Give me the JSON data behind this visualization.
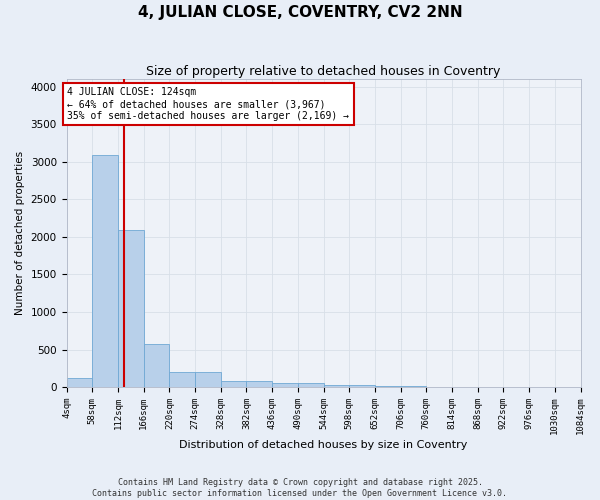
{
  "title": "4, JULIAN CLOSE, COVENTRY, CV2 2NN",
  "subtitle": "Size of property relative to detached houses in Coventry",
  "xlabel": "Distribution of detached houses by size in Coventry",
  "ylabel": "Number of detached properties",
  "bin_edges": [
    4,
    58,
    112,
    166,
    220,
    274,
    328,
    382,
    436,
    490,
    544,
    598,
    652,
    706,
    760,
    814,
    868,
    922,
    976,
    1030,
    1084
  ],
  "bar_heights": [
    120,
    3090,
    2090,
    570,
    200,
    200,
    75,
    75,
    50,
    50,
    25,
    25,
    10,
    10,
    5,
    5,
    3,
    2,
    1,
    1
  ],
  "bar_color": "#b8d0ea",
  "bar_edgecolor": "#6fa8d4",
  "property_size": 124,
  "vline_color": "#cc0000",
  "annotation_text": "4 JULIAN CLOSE: 124sqm\n← 64% of detached houses are smaller (3,967)\n35% of semi-detached houses are larger (2,169) →",
  "annotation_box_facecolor": "#ffffff",
  "annotation_box_edgecolor": "#cc0000",
  "ylim": [
    0,
    4100
  ],
  "yticks": [
    0,
    500,
    1000,
    1500,
    2000,
    2500,
    3000,
    3500,
    4000
  ],
  "bg_color": "#e8eef7",
  "plot_bg_color": "#eef2f8",
  "grid_color": "#d8dfe8",
  "footer_line1": "Contains HM Land Registry data © Crown copyright and database right 2025.",
  "footer_line2": "Contains public sector information licensed under the Open Government Licence v3.0.",
  "title_fontsize": 11,
  "subtitle_fontsize": 9,
  "annotation_fontsize": 7,
  "footer_fontsize": 6,
  "ylabel_fontsize": 7.5,
  "xlabel_fontsize": 8,
  "tick_fontsize": 6.5,
  "ytick_fontsize": 7.5
}
